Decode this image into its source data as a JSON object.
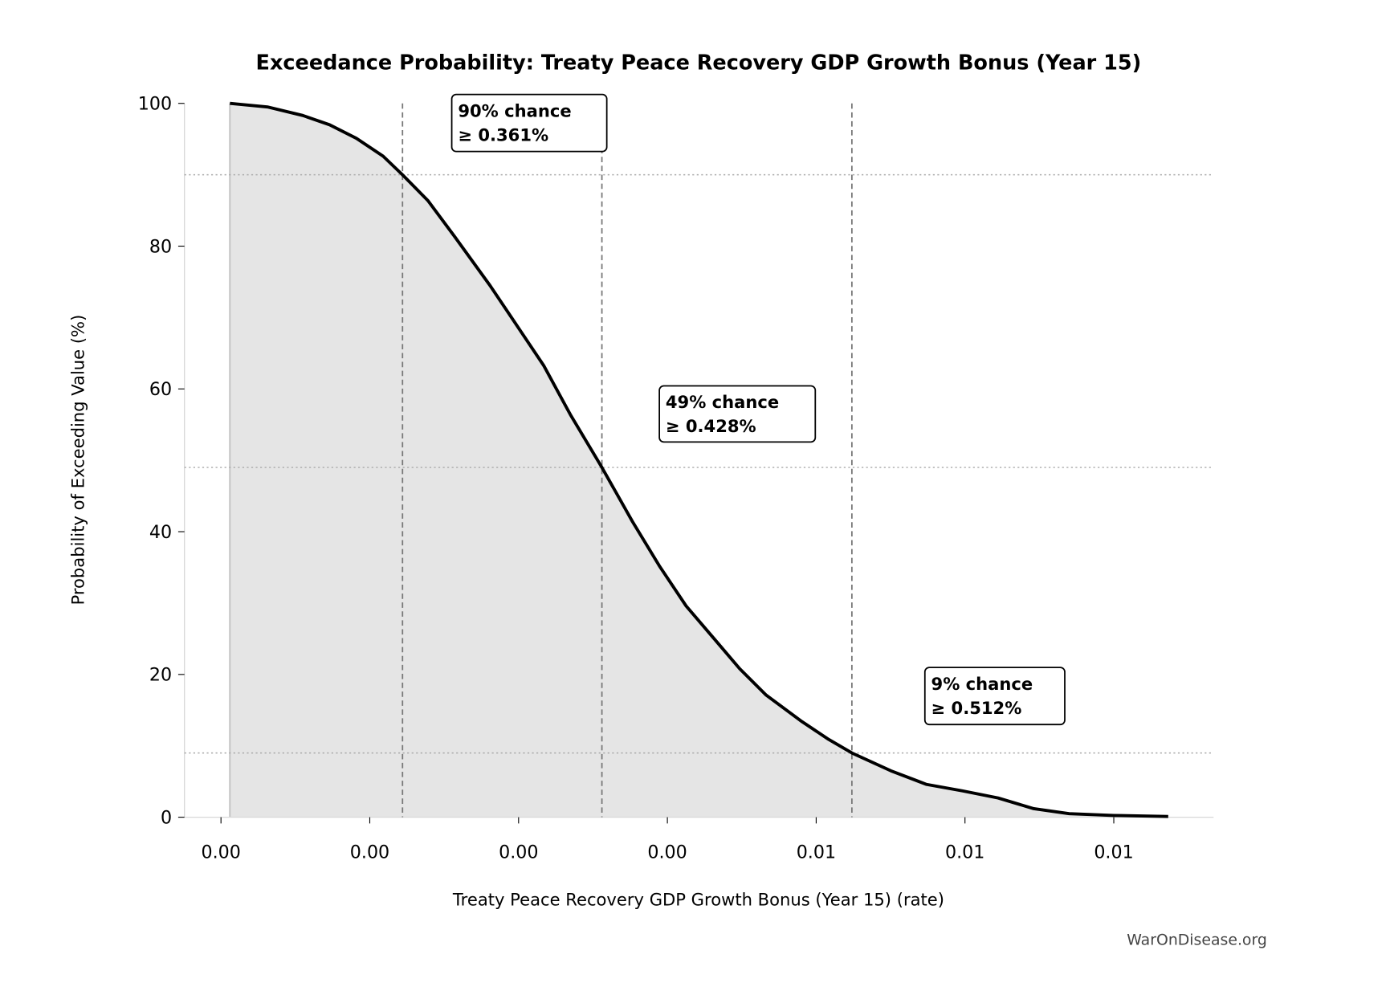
{
  "chart_data": {
    "type": "area",
    "title": "Exceedance Probability: Treaty Peace Recovery GDP Growth Bonus (Year 15)",
    "xlabel": "Treaty Peace Recovery GDP Growth Bonus (Year 15) (rate)",
    "ylabel": "Probability of Exceeding Value (%)",
    "xlim": [
      0.00288,
      0.00635
    ],
    "ylim": [
      0,
      100
    ],
    "x_ticks": [
      0.003,
      0.0035,
      0.004,
      0.0045,
      0.005,
      0.0055,
      0.006
    ],
    "x_tick_labels": [
      "0.00",
      "0.00",
      "0.00",
      "0.00",
      "0.01",
      "0.01",
      "0.01"
    ],
    "y_ticks": [
      0,
      20,
      40,
      60,
      80,
      100
    ],
    "y_tick_labels": [
      "0",
      "20",
      "40",
      "60",
      "80",
      "100"
    ],
    "grid": false,
    "line_color": "#000000",
    "fill_color": "#e5e5e5",
    "x": [
      0.00303,
      0.003156,
      0.003275,
      0.003365,
      0.003455,
      0.003545,
      0.00361,
      0.003695,
      0.003784,
      0.003904,
      0.003994,
      0.004084,
      0.004174,
      0.00428,
      0.004383,
      0.004473,
      0.004563,
      0.004653,
      0.004743,
      0.004832,
      0.004952,
      0.005042,
      0.00512,
      0.005251,
      0.005371,
      0.005491,
      0.005611,
      0.005731,
      0.00585,
      0.006,
      0.006183
    ],
    "y": [
      100,
      99.5,
      98.3,
      97,
      95.1,
      92.6,
      90,
      86.4,
      81.4,
      74.5,
      68.9,
      63.3,
      56.4,
      49,
      41.4,
      35.2,
      29.6,
      25.2,
      20.8,
      17.1,
      13.4,
      10.9,
      9,
      6.5,
      4.6,
      3.7,
      2.7,
      1.2,
      0.5,
      0.25,
      0.1
    ],
    "annotations": [
      {
        "x": 0.00361,
        "y": 90,
        "line1": "90% chance",
        "line2": "≥ 0.361%"
      },
      {
        "x": 0.00428,
        "y": 49,
        "line1": "49% chance",
        "line2": "≥ 0.428%"
      },
      {
        "x": 0.00512,
        "y": 9,
        "line1": "9% chance",
        "line2": "≥ 0.512%"
      }
    ]
  },
  "watermark": "WarOnDisease.org"
}
